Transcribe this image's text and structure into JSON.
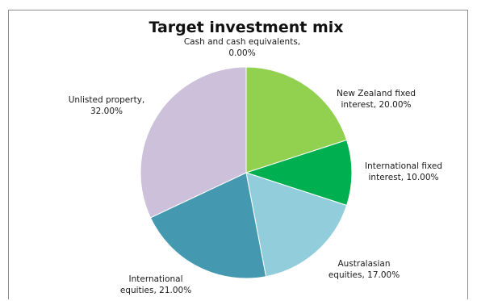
{
  "chart_data": {
    "type": "pie",
    "title": "Target investment mix",
    "start_angle_deg": 0,
    "direction": "clockwise",
    "slices": [
      {
        "name": "Cash and cash equivalents",
        "value": 0.0,
        "label_lines": [
          "Cash and cash equivalents,",
          "0.00%"
        ],
        "color": "#c9d9a8"
      },
      {
        "name": "New Zealand fixed interest",
        "value": 20.0,
        "label_lines": [
          "New Zealand fixed",
          "interest, 20.00%"
        ],
        "color": "#92d050"
      },
      {
        "name": "International fixed interest",
        "value": 10.0,
        "label_lines": [
          "International fixed",
          "interest, 10.00%"
        ],
        "color": "#00b050"
      },
      {
        "name": "Australasian equities",
        "value": 17.0,
        "label_lines": [
          "Australasian",
          "equities, 17.00%"
        ],
        "color": "#92cddc"
      },
      {
        "name": "International equities",
        "value": 21.0,
        "label_lines": [
          "International",
          "equities, 21.00%"
        ],
        "color": "#4499b0"
      },
      {
        "name": "Unlisted property",
        "value": 32.0,
        "label_lines": [
          "Unlisted property,",
          "32.00%"
        ],
        "color": "#ccc0da"
      }
    ],
    "legend": "none"
  }
}
